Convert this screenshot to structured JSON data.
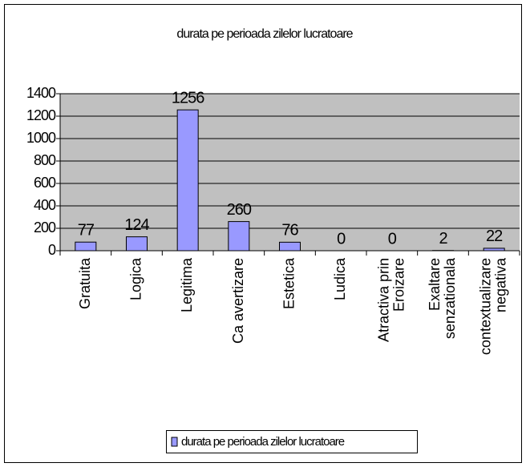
{
  "chart_data": {
    "type": "bar",
    "title": "durata pe perioada zilelor lucratoare",
    "categories": [
      "Gratuita",
      "Logica",
      "Legitima",
      "Ca avertizare",
      "Estetica",
      "Ludica",
      "Atractiva prin\nEroizare",
      "Exaltare\nsenzationala",
      "contextualizare\nnegativa"
    ],
    "series": [
      {
        "name": "durata pe perioada zilelor lucratoare",
        "color": "#9999ff",
        "values": [
          77,
          124,
          1256,
          260,
          76,
          0,
          0,
          2,
          22
        ]
      }
    ],
    "ylim": [
      0,
      1400
    ],
    "yticks": [
      0,
      200,
      400,
      600,
      800,
      1000,
      1200,
      1400
    ],
    "grid": true
  }
}
